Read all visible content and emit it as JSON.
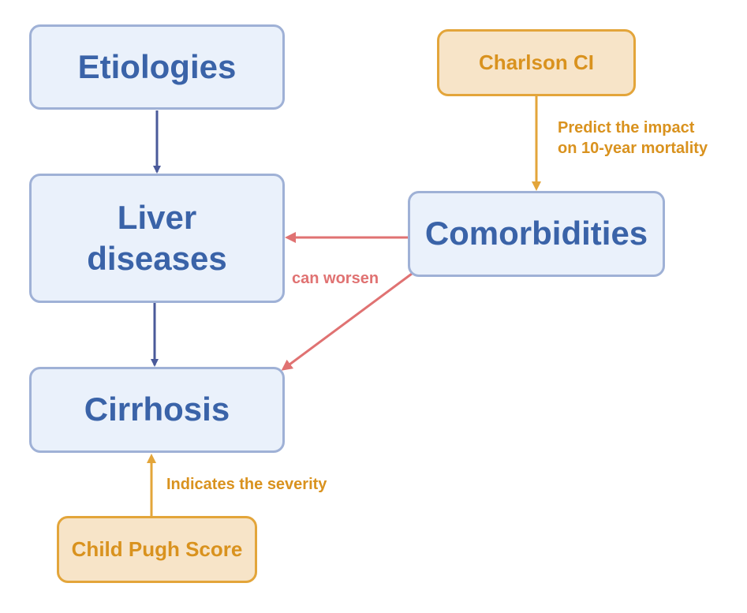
{
  "nodes": {
    "etiologies": "Etiologies",
    "liver_diseases": "Liver\ndiseases",
    "cirrhosis": "Cirrhosis",
    "comorbidities": "Comorbidities",
    "charlson_ci": "Charlson CI",
    "child_pugh": "Child Pugh Score"
  },
  "edge_labels": {
    "charlson_to_comorbidities": "Predict the impact\non 10-year mortality",
    "comorbidities_worsen": "can worsen",
    "child_pugh_to_cirrhosis": "Indicates the severity"
  },
  "colors": {
    "blue_fill": "#eaf1fb",
    "blue_border": "#9fb1d6",
    "blue_text": "#3a63a8",
    "flow_arrow": "#4a5a9a",
    "orange_fill": "#f7e4c8",
    "orange_border": "#e3a53a",
    "orange_text": "#d9921e",
    "red_arrow": "#e07272"
  }
}
